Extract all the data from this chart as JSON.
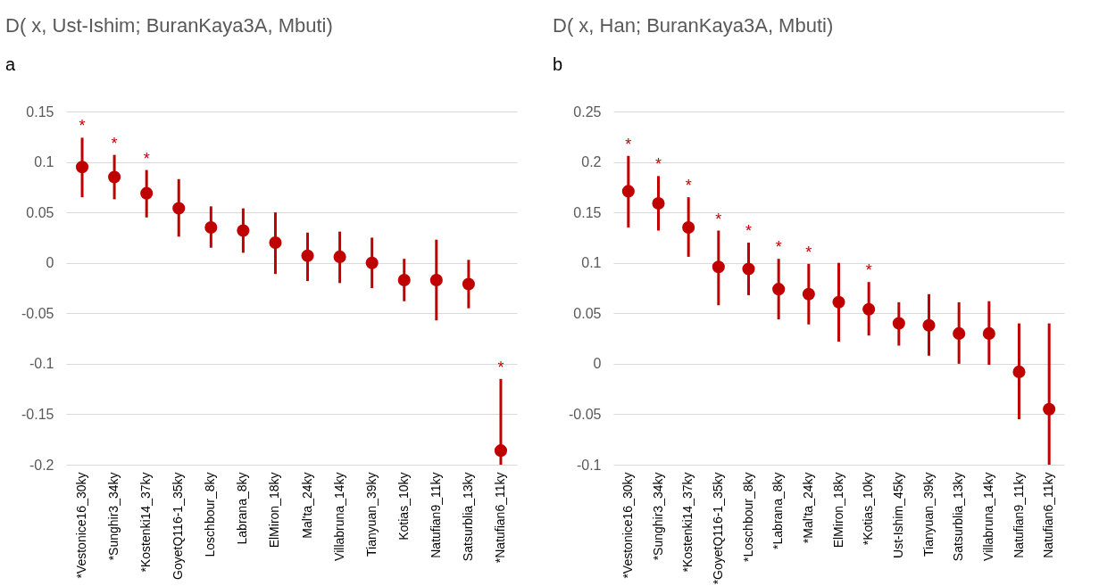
{
  "chart_data": [
    {
      "type": "scatter",
      "title": "D( x, Ust-Ishim; BuranKaya3A, Mbuti)",
      "marker": "circle",
      "grid": "y",
      "categories": [
        "*Vestonice16_30ky",
        "*Sunghir3_34ky",
        "*Kostenki14_37ky",
        "GoyetQ116-1_35ky",
        "Loschbour_8ky",
        "Labrana_8ky",
        "ElMiron_18ky",
        "Mal'ta_24ky",
        "Villabruna_14ky",
        "Tianyuan_39ky",
        "Kotias_10ky",
        "Natufian9_11ky",
        "Satsurblia_13ky",
        "*Natufian6_11ky"
      ],
      "series": [
        {
          "color": "#c00000",
          "values": [
            0.095,
            0.085,
            0.069,
            0.054,
            0.035,
            0.032,
            0.02,
            0.007,
            0.006,
            0.0,
            -0.017,
            -0.017,
            -0.021,
            -0.186
          ],
          "errors": [
            [
              0.065,
              0.124
            ],
            [
              0.063,
              0.107
            ],
            [
              0.045,
              0.092
            ],
            [
              0.026,
              0.083
            ],
            [
              0.015,
              0.056
            ],
            [
              0.01,
              0.054
            ],
            [
              -0.011,
              0.05
            ],
            [
              -0.018,
              0.03
            ],
            [
              -0.02,
              0.031
            ],
            [
              -0.025,
              0.025
            ],
            [
              -0.038,
              0.004
            ],
            [
              -0.057,
              0.023
            ],
            [
              -0.045,
              0.003
            ],
            [
              -0.2,
              -0.115
            ]
          ]
        }
      ],
      "ylim": [
        -0.2,
        0.15
      ],
      "yticks": [
        -0.2,
        -0.15,
        -0.1,
        -0.05,
        0,
        0.05,
        0.1,
        0.15
      ],
      "annotations": [
        "a",
        {
          "text": "*",
          "x": "*Vestonice16_30ky",
          "y": 0.124
        },
        {
          "text": "*",
          "x": "*Sunghir3_34ky",
          "y": 0.107
        },
        {
          "text": "*",
          "x": "*Kostenki14_37ky",
          "y": 0.092
        },
        {
          "text": "*",
          "x": "*Natufian6_11ky",
          "y": -0.115
        }
      ]
    },
    {
      "type": "scatter",
      "title": "D( x, Han; BuranKaya3A, Mbuti)",
      "marker": "circle",
      "grid": "y",
      "categories": [
        "*Vestonice16_30ky",
        "*Sunghir3_34ky",
        "*Kostenki14_37ky",
        "*GoyetQ116-1_35ky",
        "*Loschbour_8ky",
        "*Labrana_8ky",
        "*Mal'ta_24ky",
        "ElMiron_18ky",
        "*Kotias_10ky",
        "Ust-Ishim_45ky",
        "Tianyuan_39ky",
        "Satsurblia_13ky",
        "Villabruna_14ky",
        "Natufian9_11ky",
        "Natufian6_11ky"
      ],
      "series": [
        {
          "color": "#c00000",
          "values": [
            0.171,
            0.159,
            0.135,
            0.096,
            0.094,
            0.074,
            0.069,
            0.061,
            0.054,
            0.04,
            0.038,
            0.03,
            0.03,
            -0.008,
            -0.045
          ],
          "errors": [
            [
              0.135,
              0.206
            ],
            [
              0.132,
              0.186
            ],
            [
              0.106,
              0.165
            ],
            [
              0.058,
              0.132
            ],
            [
              0.068,
              0.12
            ],
            [
              0.044,
              0.104
            ],
            [
              0.039,
              0.099
            ],
            [
              0.022,
              0.1
            ],
            [
              0.028,
              0.081
            ],
            [
              0.018,
              0.061
            ],
            [
              0.008,
              0.069
            ],
            [
              0.0,
              0.061
            ],
            [
              -0.001,
              0.062
            ],
            [
              -0.055,
              0.04
            ],
            [
              -0.1,
              0.04
            ]
          ]
        }
      ],
      "ylim": [
        -0.1,
        0.25
      ],
      "yticks": [
        -0.1,
        -0.05,
        0,
        0.05,
        0.1,
        0.15,
        0.2,
        0.25
      ],
      "annotations": [
        "b",
        {
          "text": "*",
          "x": "*Vestonice16_30ky",
          "y": 0.206
        },
        {
          "text": "*",
          "x": "*Sunghir3_34ky",
          "y": 0.186
        },
        {
          "text": "*",
          "x": "*Kostenki14_37ky",
          "y": 0.165
        },
        {
          "text": "*",
          "x": "*GoyetQ116-1_35ky",
          "y": 0.132
        },
        {
          "text": "*",
          "x": "*Loschbour_8ky",
          "y": 0.12
        },
        {
          "text": "*",
          "x": "*Labrana_8ky",
          "y": 0.104
        },
        {
          "text": "*",
          "x": "*Mal'ta_24ky",
          "y": 0.099
        },
        {
          "text": "*",
          "x": "*Kotias_10ky",
          "y": 0.081
        }
      ]
    }
  ]
}
